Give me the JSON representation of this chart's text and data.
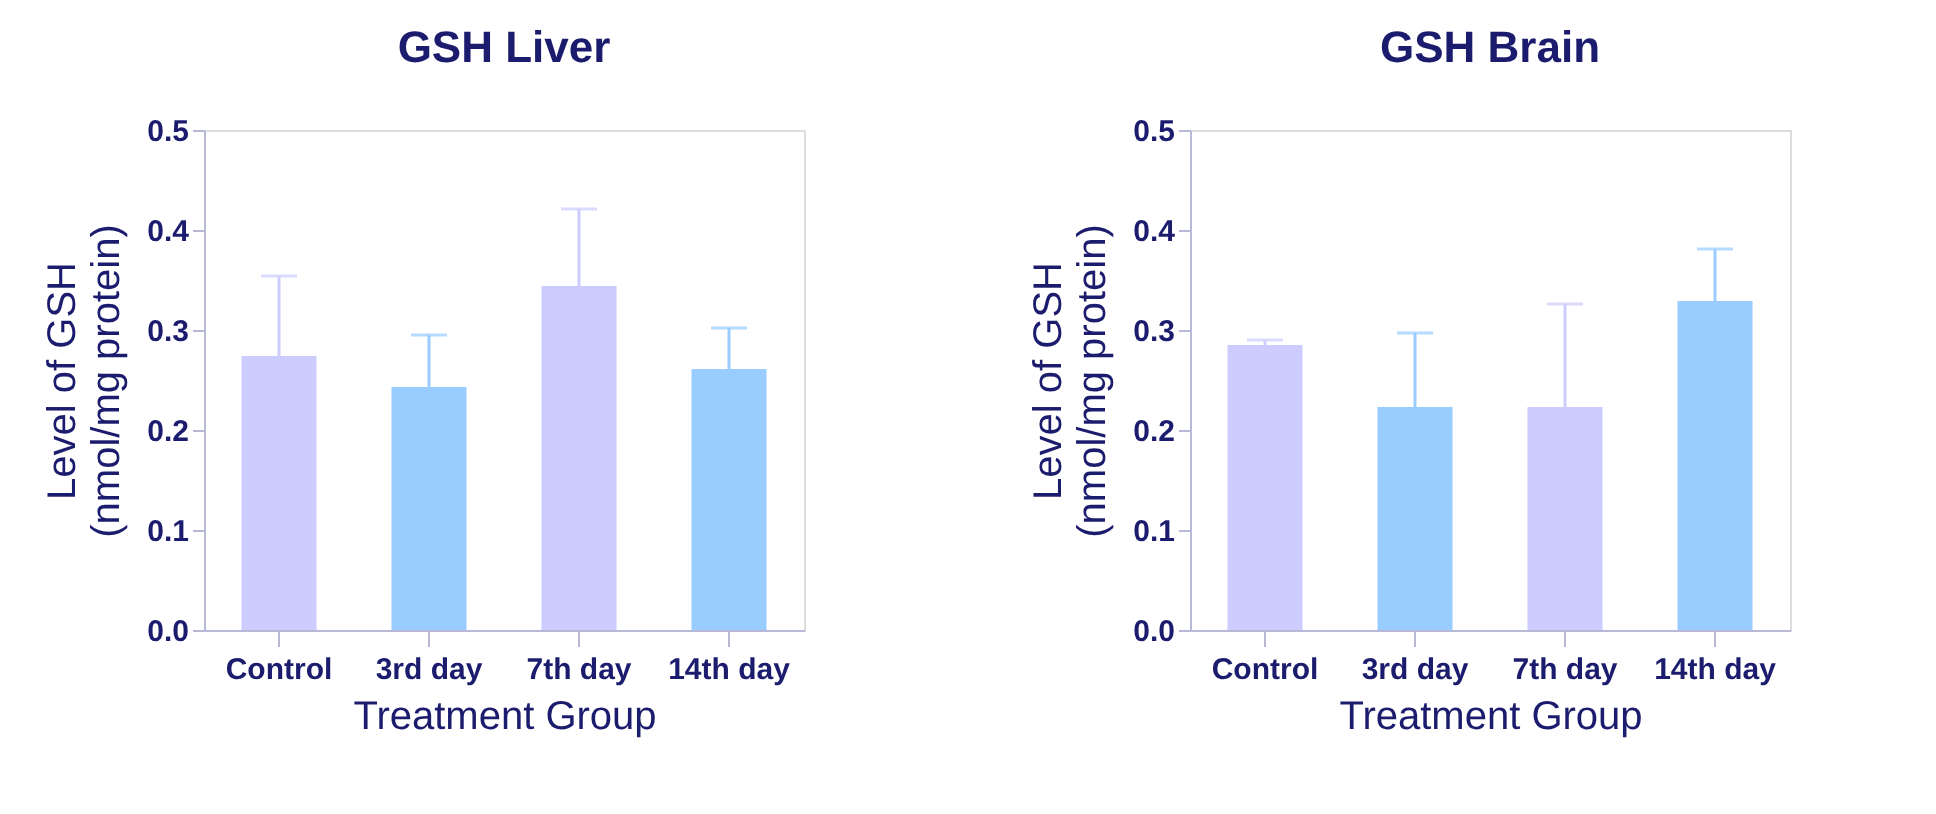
{
  "chart_data": [
    {
      "type": "bar",
      "title": "GSH Liver",
      "xlabel": "Treatment Group",
      "ylabel": "Level of GSH\n(nmol/mg protein)",
      "categories": [
        "Control",
        "3rd day",
        "7th day",
        "14th day"
      ],
      "values": [
        0.274,
        0.243,
        0.344,
        0.261
      ],
      "colors": [
        "#ccccff",
        "#99ccff",
        "#ccccff",
        "#99ccff"
      ],
      "errors": [
        [
          0.274,
          0.354
        ],
        [
          0.243,
          0.295
        ],
        [
          0.344,
          0.421
        ],
        [
          0.261,
          0.302
        ]
      ],
      "ylim": [
        0,
        0.5
      ],
      "yticks": [
        {
          "value": 0,
          "label": "0.0"
        },
        0.1,
        0.2,
        0.3,
        0.4,
        0.5
      ],
      "grid": false,
      "legend": false
    },
    {
      "type": "bar",
      "title": "GSH Brain",
      "xlabel": "Treatment Group",
      "ylabel": "Level of GSH\n(nmol/mg protein)",
      "categories": [
        "Control",
        "3rd day",
        "7th day",
        "14th day"
      ],
      "values": [
        0.285,
        0.223,
        0.223,
        0.329
      ],
      "colors": [
        "#ccccff",
        "#99ccff",
        "#ccccff",
        "#99ccff"
      ],
      "errors": [
        [
          0.285,
          0.29
        ],
        [
          0.223,
          0.297
        ],
        [
          0.223,
          0.326
        ],
        [
          0.329,
          0.381
        ]
      ],
      "ylim": [
        0,
        0.5
      ],
      "yticks": [
        {
          "value": 0,
          "label": "0.0"
        },
        0.1,
        0.2,
        0.3,
        0.4,
        0.5
      ],
      "grid": false,
      "legend": false
    }
  ]
}
